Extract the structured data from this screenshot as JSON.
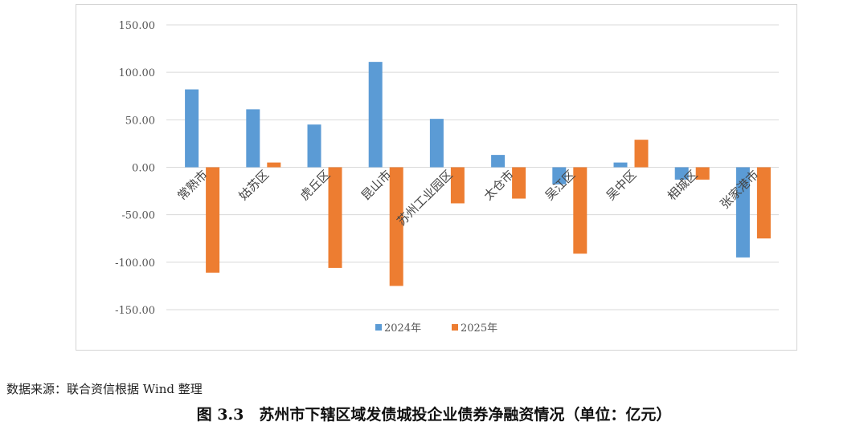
{
  "chart_data": {
    "type": "bar",
    "categories": [
      "常熟市",
      "姑苏区",
      "虎丘区",
      "昆山市",
      "苏州工业园区",
      "太仓市",
      "吴江区",
      "吴中区",
      "相城区",
      "张家港市"
    ],
    "series": [
      {
        "name": "2024年",
        "color": "#5b9bd5",
        "values": [
          82,
          61,
          45,
          111,
          51,
          13,
          -18,
          5,
          -13,
          -95
        ]
      },
      {
        "name": "2025年",
        "color": "#ed7d31",
        "values": [
          -111,
          5,
          -106,
          -125,
          -38,
          -33,
          -91,
          29,
          -13,
          -75
        ]
      }
    ],
    "ylim": [
      -150,
      150
    ],
    "yticks": [
      150,
      100,
      50,
      0,
      -50,
      -100,
      -150
    ],
    "ytick_labels": [
      "150.00",
      "100.00",
      "50.00",
      "0.00",
      "-50.00",
      "-100.00",
      "-150.00"
    ],
    "grid": true,
    "legend_position": "bottom"
  },
  "source_note": "数据来源：联合资信根据 Wind 整理",
  "caption": "图 3.3　苏州市下辖区域发债城投企业债券净融资情况（单位：亿元）"
}
